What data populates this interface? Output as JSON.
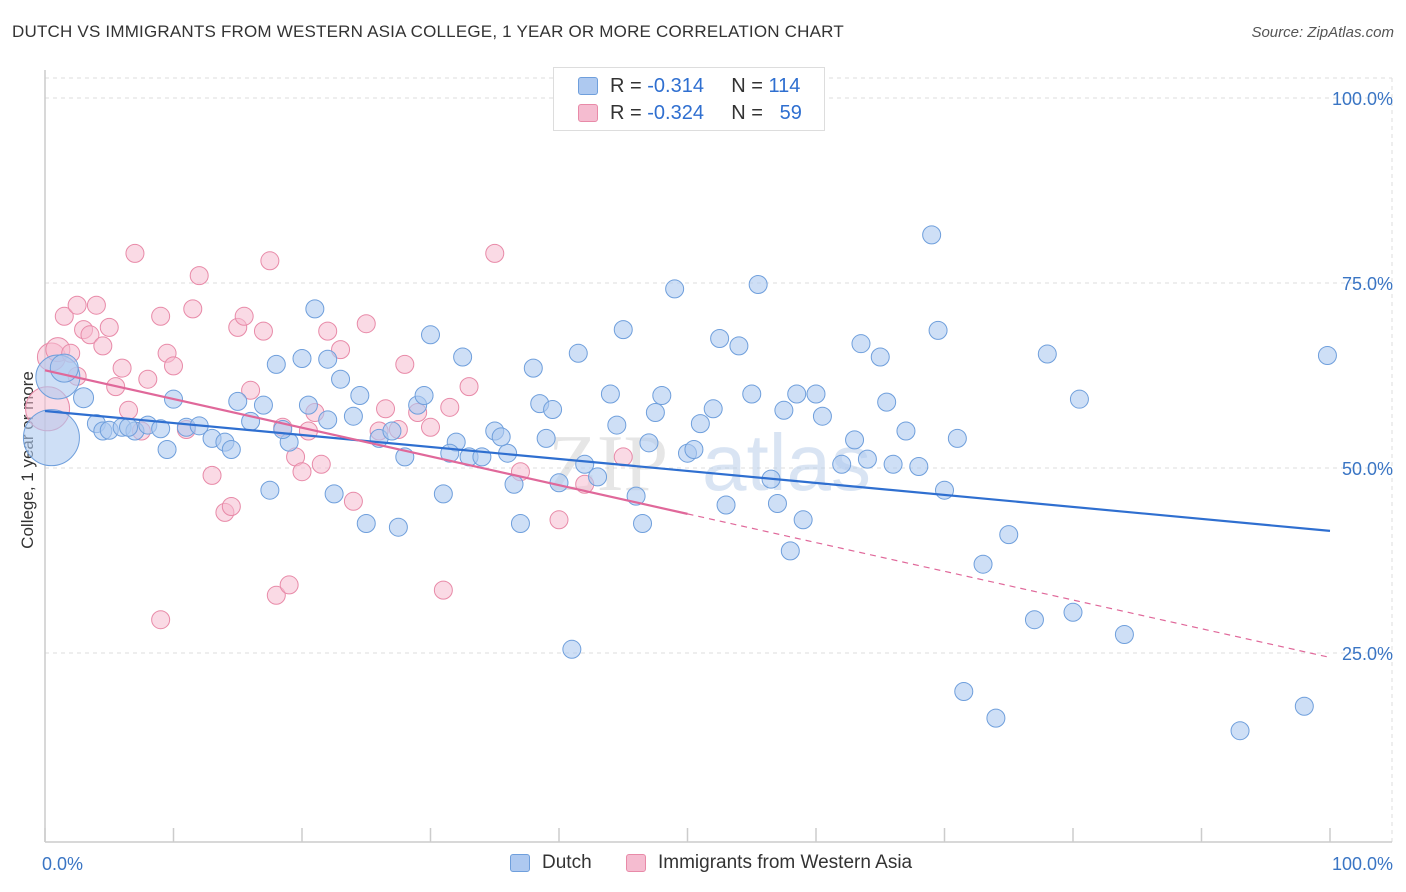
{
  "header": {
    "title": "DUTCH VS IMMIGRANTS FROM WESTERN ASIA COLLEGE, 1 YEAR OR MORE CORRELATION CHART",
    "source": "Source: ZipAtlas.com"
  },
  "watermark": {
    "text_zip": "ZIP",
    "text_atlas": "atlas"
  },
  "legend_top": {
    "rows": [
      {
        "r_label": "R =",
        "r_value": "-0.314",
        "n_label": "N =",
        "n_value": "114"
      },
      {
        "r_label": "R =",
        "r_value": "-0.324",
        "n_label": "N =",
        "n_value": "59"
      }
    ]
  },
  "colors": {
    "dutch_fill": "#aec9f0",
    "dutch_stroke": "#6f9fdc",
    "dutch_line": "#2f6fd0",
    "immigrants_fill": "#f5bcd0",
    "immigrants_stroke": "#e88aa8",
    "immigrants_line": "#e0689a",
    "axis_text": "#3a75c4",
    "grid": "#dddddd"
  },
  "chart_data": {
    "type": "scatter",
    "title": "DUTCH VS IMMIGRANTS FROM WESTERN ASIA COLLEGE, 1 YEAR OR MORE CORRELATION CHART",
    "xlabel": "",
    "ylabel": "College, 1 year or more",
    "xlim": [
      0,
      100
    ],
    "ylim": [
      0,
      100
    ],
    "x_tick_labels": [
      "0.0%",
      "100.0%"
    ],
    "y_tick_labels": [
      "25.0%",
      "50.0%",
      "75.0%",
      "100.0%"
    ],
    "y_ticks": [
      25,
      50,
      75,
      100
    ],
    "grid": true,
    "legend_placement": "bottom",
    "series": [
      {
        "name": "Dutch",
        "r": -0.314,
        "n": 114,
        "trend": {
          "x": [
            0,
            100
          ],
          "y": [
            57.7,
            41.5
          ]
        },
        "points": [
          [
            0.5,
            54.1,
            28
          ],
          [
            1,
            62.3,
            22
          ],
          [
            1.5,
            63.5,
            14
          ],
          [
            3,
            59.5,
            10
          ],
          [
            4,
            56,
            9
          ],
          [
            4.5,
            55,
            9
          ],
          [
            5,
            55.1,
            9
          ],
          [
            6,
            55.5,
            9
          ],
          [
            7,
            55,
            9
          ],
          [
            6.5,
            55.5,
            9
          ],
          [
            8,
            55.8,
            9
          ],
          [
            9,
            55.3,
            9
          ],
          [
            9.5,
            52.5,
            9
          ],
          [
            10,
            59.3,
            9
          ],
          [
            11,
            55.5,
            9
          ],
          [
            12,
            55.7,
            9
          ],
          [
            13,
            54,
            9
          ],
          [
            14,
            53.5,
            9
          ],
          [
            14.5,
            52.5,
            9
          ],
          [
            15,
            59,
            9
          ],
          [
            16,
            56.3,
            9
          ],
          [
            17,
            58.5,
            9
          ],
          [
            17.5,
            47,
            9
          ],
          [
            18,
            64,
            9
          ],
          [
            19,
            53.5,
            9
          ],
          [
            20,
            64.8,
            9
          ],
          [
            20.5,
            58.5,
            9
          ],
          [
            21,
            71.5,
            9
          ],
          [
            22,
            64.7,
            9
          ],
          [
            22.5,
            46.5,
            9
          ],
          [
            23,
            62,
            9
          ],
          [
            24,
            57,
            9
          ],
          [
            24.5,
            59.8,
            9
          ],
          [
            25,
            42.5,
            9
          ],
          [
            26,
            54,
            9
          ],
          [
            27,
            55,
            9
          ],
          [
            27.5,
            42,
            9
          ],
          [
            28,
            51.5,
            9
          ],
          [
            29,
            58.5,
            9
          ],
          [
            29.5,
            59.8,
            9
          ],
          [
            30,
            68,
            9
          ],
          [
            31,
            46.5,
            9
          ],
          [
            32,
            53.5,
            9
          ],
          [
            31.5,
            52,
            9
          ],
          [
            32.5,
            65,
            9
          ],
          [
            33,
            51.5,
            9
          ],
          [
            34,
            51.5,
            9
          ],
          [
            35,
            55,
            9
          ],
          [
            36,
            52,
            9
          ],
          [
            36.5,
            47.8,
            9
          ],
          [
            37,
            42.5,
            9
          ],
          [
            38,
            63.5,
            9
          ],
          [
            38.5,
            58.7,
            9
          ],
          [
            39,
            54,
            9
          ],
          [
            40,
            48,
            9
          ],
          [
            41,
            25.5,
            9
          ],
          [
            41.5,
            65.5,
            9
          ],
          [
            42,
            50.5,
            9
          ],
          [
            43,
            48.8,
            9
          ],
          [
            44,
            60,
            9
          ],
          [
            45,
            68.7,
            9
          ],
          [
            46,
            46.2,
            9
          ],
          [
            46.5,
            42.5,
            9
          ],
          [
            47,
            53.4,
            9
          ],
          [
            48,
            59.8,
            9
          ],
          [
            49,
            74.2,
            9
          ],
          [
            50,
            52,
            9
          ],
          [
            50.5,
            52.5,
            9
          ],
          [
            51,
            56,
            9
          ],
          [
            52,
            58,
            9
          ],
          [
            52.5,
            67.5,
            9
          ],
          [
            53,
            45,
            9
          ],
          [
            54,
            66.5,
            9
          ],
          [
            55,
            60,
            9
          ],
          [
            55.5,
            74.8,
            9
          ],
          [
            56.5,
            48.5,
            9
          ],
          [
            57,
            45.2,
            9
          ],
          [
            58,
            38.8,
            9
          ],
          [
            58.5,
            60,
            9
          ],
          [
            59,
            43,
            9
          ],
          [
            60,
            60,
            9
          ],
          [
            62,
            50.5,
            9
          ],
          [
            63,
            53.8,
            9
          ],
          [
            63.5,
            66.8,
            9
          ],
          [
            64,
            51.2,
            9
          ],
          [
            65,
            65,
            9
          ],
          [
            66,
            50.5,
            9
          ],
          [
            67,
            55,
            9
          ],
          [
            68,
            50.2,
            9
          ],
          [
            69,
            81.5,
            9
          ],
          [
            69.5,
            68.6,
            9
          ],
          [
            70,
            47,
            9
          ],
          [
            71,
            54,
            9
          ],
          [
            73,
            37,
            9
          ],
          [
            75,
            41,
            9
          ],
          [
            77,
            29.5,
            9
          ],
          [
            78,
            65.4,
            9
          ],
          [
            80,
            30.5,
            9
          ],
          [
            84,
            27.5,
            9
          ],
          [
            71.5,
            19.8,
            9
          ],
          [
            74,
            16.2,
            9
          ],
          [
            93,
            14.5,
            9
          ],
          [
            98,
            17.8,
            9
          ],
          [
            99.8,
            65.2,
            9
          ],
          [
            57.5,
            57.8,
            9
          ],
          [
            47.5,
            57.5,
            9
          ],
          [
            60.5,
            57,
            9
          ],
          [
            39.5,
            57.9,
            9
          ],
          [
            80.5,
            59.3,
            9
          ],
          [
            22,
            56.5,
            9
          ],
          [
            44.5,
            55.8,
            9
          ],
          [
            18.5,
            55.2,
            9
          ],
          [
            65.5,
            58.9,
            9
          ],
          [
            35.5,
            54.2,
            9
          ]
        ]
      },
      {
        "name": "Immigrants from Western Asia",
        "r": -0.324,
        "n": 59,
        "trend": {
          "x": [
            0,
            50
          ],
          "y": [
            63.2,
            43.8
          ]
        },
        "trend_extension": {
          "x": [
            50,
            100
          ],
          "y": [
            43.8,
            24.4
          ]
        },
        "points": [
          [
            0.2,
            58,
            22
          ],
          [
            0.5,
            65,
            14
          ],
          [
            1,
            66,
            12
          ],
          [
            1.5,
            70.5,
            9
          ],
          [
            2,
            65.5,
            9
          ],
          [
            2.5,
            72,
            9
          ],
          [
            3,
            68.7,
            9
          ],
          [
            3.5,
            68,
            9
          ],
          [
            4,
            72,
            9
          ],
          [
            4.5,
            66.5,
            9
          ],
          [
            5,
            69,
            9
          ],
          [
            5.5,
            61,
            9
          ],
          [
            6,
            63.5,
            9
          ],
          [
            7,
            79,
            9
          ],
          [
            7.5,
            55,
            9
          ],
          [
            8,
            62,
            9
          ],
          [
            9,
            70.5,
            9
          ],
          [
            9.5,
            65.5,
            9
          ],
          [
            10,
            63.8,
            9
          ],
          [
            11,
            55.2,
            9
          ],
          [
            11.5,
            71.5,
            9
          ],
          [
            12,
            76,
            9
          ],
          [
            13,
            49,
            9
          ],
          [
            14,
            44,
            9
          ],
          [
            14.5,
            44.8,
            9
          ],
          [
            15,
            69,
            9
          ],
          [
            15.5,
            70.5,
            9
          ],
          [
            16,
            60.5,
            9
          ],
          [
            17,
            68.5,
            9
          ],
          [
            17.5,
            78,
            9
          ],
          [
            18,
            32.8,
            9
          ],
          [
            18.5,
            55.5,
            9
          ],
          [
            19,
            34.2,
            9
          ],
          [
            19.5,
            51.5,
            9
          ],
          [
            20,
            49.5,
            9
          ],
          [
            20.5,
            55,
            9
          ],
          [
            21,
            57.5,
            9
          ],
          [
            21.5,
            50.5,
            9
          ],
          [
            22,
            68.5,
            9
          ],
          [
            23,
            66,
            9
          ],
          [
            24,
            45.5,
            9
          ],
          [
            25,
            69.5,
            9
          ],
          [
            26,
            55,
            9
          ],
          [
            26.5,
            58,
            9
          ],
          [
            27.5,
            55.2,
            9
          ],
          [
            28,
            64,
            9
          ],
          [
            29,
            57.5,
            9
          ],
          [
            30,
            55.5,
            9
          ],
          [
            31,
            33.5,
            9
          ],
          [
            31.5,
            58.2,
            9
          ],
          [
            33,
            61,
            9
          ],
          [
            35,
            79,
            9
          ],
          [
            37,
            49.5,
            9
          ],
          [
            40,
            43,
            9
          ],
          [
            42,
            47.8,
            9
          ],
          [
            45,
            51.5,
            9
          ],
          [
            9,
            29.5,
            9
          ],
          [
            2.5,
            62.4,
            9
          ],
          [
            6.5,
            57.8,
            9
          ]
        ]
      }
    ]
  },
  "bottom_legend": {
    "items": [
      {
        "label": "Dutch"
      },
      {
        "label": "Immigrants from Western Asia"
      }
    ]
  }
}
